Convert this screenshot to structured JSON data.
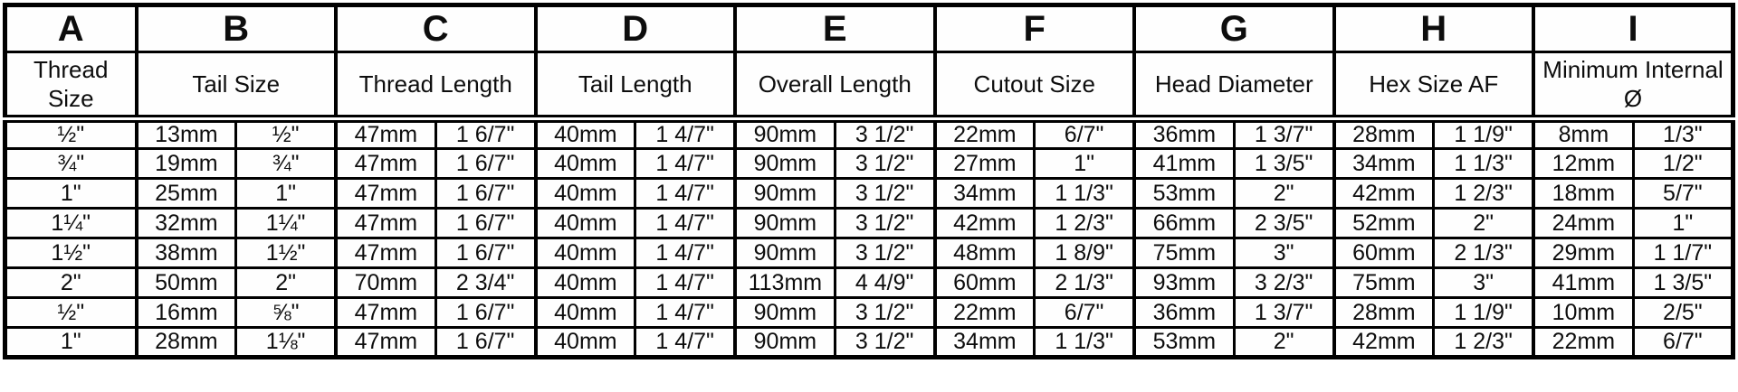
{
  "colors": {
    "border": "#000000",
    "background": "#ffffff",
    "text": "#0d0d0d"
  },
  "table": {
    "column_letters": [
      "A",
      "B",
      "C",
      "D",
      "E",
      "F",
      "G",
      "H",
      "I"
    ],
    "column_descriptions": [
      "Thread\nSize",
      "Tail Size",
      "Thread Length",
      "Tail Length",
      "Overall Length",
      "Cutout Size",
      "Head Diameter",
      "Hex Size AF",
      "Minimum Internal\nØ"
    ],
    "rows": [
      [
        "½\"",
        "13mm",
        "½\"",
        "47mm",
        "1 6/7\"",
        "40mm",
        "1 4/7\"",
        "90mm",
        "3 1/2\"",
        "22mm",
        "6/7\"",
        "36mm",
        "1 3/7\"",
        "28mm",
        "1 1/9\"",
        "8mm",
        "1/3\""
      ],
      [
        "¾\"",
        "19mm",
        "¾\"",
        "47mm",
        "1 6/7\"",
        "40mm",
        "1 4/7\"",
        "90mm",
        "3 1/2\"",
        "27mm",
        "1\"",
        "41mm",
        "1 3/5\"",
        "34mm",
        "1 1/3\"",
        "12mm",
        "1/2\""
      ],
      [
        "1\"",
        "25mm",
        "1\"",
        "47mm",
        "1 6/7\"",
        "40mm",
        "1 4/7\"",
        "90mm",
        "3 1/2\"",
        "34mm",
        "1 1/3\"",
        "53mm",
        "2\"",
        "42mm",
        "1 2/3\"",
        "18mm",
        "5/7\""
      ],
      [
        "1¼\"",
        "32mm",
        "1¼\"",
        "47mm",
        "1 6/7\"",
        "40mm",
        "1 4/7\"",
        "90mm",
        "3 1/2\"",
        "42mm",
        "1 2/3\"",
        "66mm",
        "2 3/5\"",
        "52mm",
        "2\"",
        "24mm",
        "1\""
      ],
      [
        "1½\"",
        "38mm",
        "1½\"",
        "47mm",
        "1 6/7\"",
        "40mm",
        "1 4/7\"",
        "90mm",
        "3 1/2\"",
        "48mm",
        "1 8/9\"",
        "75mm",
        "3\"",
        "60mm",
        "2 1/3\"",
        "29mm",
        "1 1/7\""
      ],
      [
        "2\"",
        "50mm",
        "2\"",
        "70mm",
        "2 3/4\"",
        "40mm",
        "1 4/7\"",
        "113mm",
        "4 4/9\"",
        "60mm",
        "2 1/3\"",
        "93mm",
        "3 2/3\"",
        "75mm",
        "3\"",
        "41mm",
        "1 3/5\""
      ],
      [
        "½\"",
        "16mm",
        "⅝\"",
        "47mm",
        "1 6/7\"",
        "40mm",
        "1 4/7\"",
        "90mm",
        "3 1/2\"",
        "22mm",
        "6/7\"",
        "36mm",
        "1 3/7\"",
        "28mm",
        "1 1/9\"",
        "10mm",
        "2/5\""
      ],
      [
        "1\"",
        "28mm",
        "1⅛\"",
        "47mm",
        "1 6/7\"",
        "40mm",
        "1 4/7\"",
        "90mm",
        "3 1/2\"",
        "34mm",
        "1 1/3\"",
        "53mm",
        "2\"",
        "42mm",
        "1 2/3\"",
        "22mm",
        "6/7\""
      ]
    ]
  }
}
